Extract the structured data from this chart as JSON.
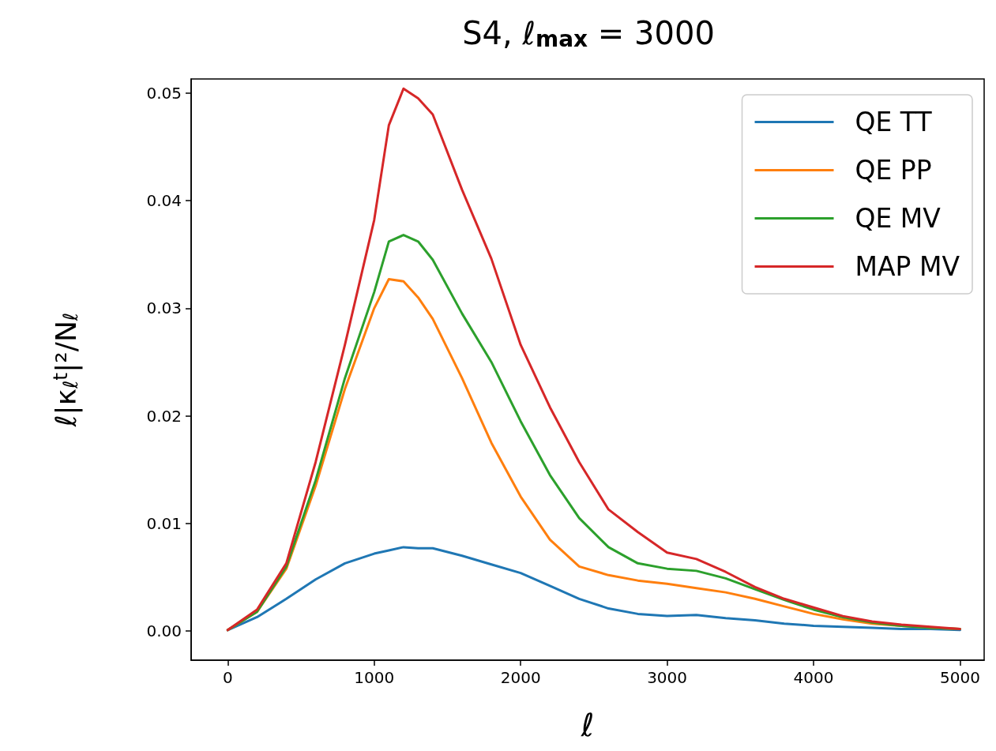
{
  "chart_data": {
    "type": "line",
    "title": "S4, ℓ$_{max}$ = 3000",
    "xlabel": "ℓ",
    "ylabel": "ℓ|κ$_{ℓ}$$^{t}$|²/N$_{ℓ}$",
    "x": [
      0,
      200,
      400,
      600,
      800,
      1000,
      1100,
      1200,
      1300,
      1400,
      1600,
      1800,
      2000,
      2200,
      2400,
      2600,
      2800,
      3000,
      3200,
      3400,
      3600,
      3800,
      4000,
      4200,
      4400,
      4600,
      4800,
      5000
    ],
    "series": [
      {
        "name": "QE TT",
        "color": "#1f77b4",
        "values": [
          0.0001,
          0.0013,
          0.003,
          0.0048,
          0.0063,
          0.0072,
          0.0075,
          0.0078,
          0.0077,
          0.0077,
          0.007,
          0.0062,
          0.0054,
          0.0042,
          0.003,
          0.0021,
          0.0016,
          0.0014,
          0.0015,
          0.0012,
          0.001,
          0.0007,
          0.0005,
          0.0004,
          0.0003,
          0.0002,
          0.0002,
          0.0001
        ]
      },
      {
        "name": "QE PP",
        "color": "#ff7f0e",
        "values": [
          0.0001,
          0.0018,
          0.0058,
          0.0135,
          0.0225,
          0.03,
          0.0327,
          0.0325,
          0.031,
          0.029,
          0.0235,
          0.0175,
          0.0125,
          0.0085,
          0.006,
          0.0052,
          0.0047,
          0.0044,
          0.004,
          0.0036,
          0.003,
          0.0023,
          0.0016,
          0.0011,
          0.0007,
          0.0005,
          0.0003,
          0.0002
        ]
      },
      {
        "name": "QE MV",
        "color": "#2ca02c",
        "values": [
          0.0001,
          0.0018,
          0.006,
          0.014,
          0.0235,
          0.0315,
          0.0362,
          0.0368,
          0.0362,
          0.0345,
          0.0295,
          0.025,
          0.0195,
          0.0145,
          0.0105,
          0.0078,
          0.0063,
          0.0058,
          0.0056,
          0.0049,
          0.0039,
          0.0029,
          0.002,
          0.0013,
          0.0008,
          0.0005,
          0.0003,
          0.0002
        ]
      },
      {
        "name": "MAP MV",
        "color": "#d62728",
        "values": [
          0.0001,
          0.002,
          0.0063,
          0.0157,
          0.0266,
          0.0382,
          0.047,
          0.0504,
          0.0495,
          0.048,
          0.041,
          0.0346,
          0.0266,
          0.0208,
          0.0157,
          0.0113,
          0.0092,
          0.0073,
          0.0067,
          0.0055,
          0.0041,
          0.003,
          0.0022,
          0.0014,
          0.0009,
          0.0006,
          0.0004,
          0.0002
        ]
      }
    ],
    "xlim": [
      -250,
      5165
    ],
    "ylim": [
      -0.0027,
      0.0513
    ],
    "xticks": [
      0,
      1000,
      2000,
      3000,
      4000,
      5000
    ],
    "yticks": [
      {
        "value": 0,
        "label": "0.00"
      },
      {
        "value": 0.01,
        "label": "0.01"
      },
      {
        "value": 0.02,
        "label": "0.02"
      },
      {
        "value": 0.03,
        "label": "0.03"
      },
      {
        "value": 0.04,
        "label": "0.04"
      },
      {
        "value": 0.05,
        "label": "0.05"
      }
    ],
    "grid": false,
    "legend": "top right",
    "marker": "none",
    "line_style": "solid"
  }
}
